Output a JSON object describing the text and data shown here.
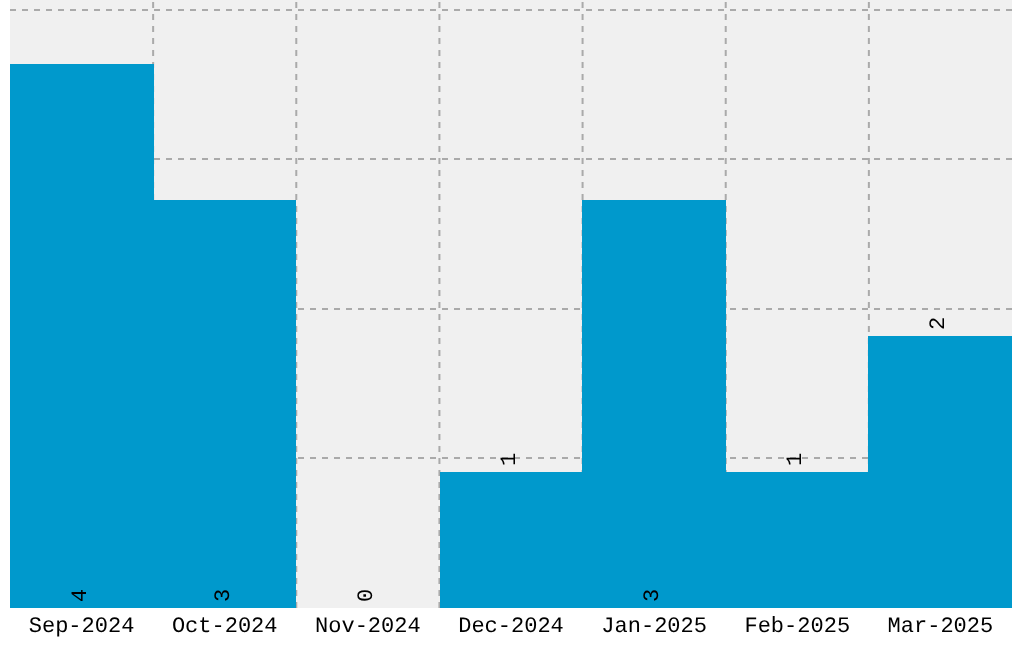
{
  "chart_data": {
    "type": "bar",
    "categories": [
      "Sep-2024",
      "Oct-2024",
      "Nov-2024",
      "Dec-2024",
      "Jan-2025",
      "Feb-2025",
      "Mar-2025"
    ],
    "values": [
      4,
      3,
      0,
      1,
      3,
      1,
      2
    ],
    "color": "#0099cc",
    "ylim": [
      0,
      4.47
    ],
    "yticks": [
      {
        "value": 0,
        "label": null
      },
      {
        "value": 1.1,
        "label": null
      },
      {
        "value": 2.2,
        "label": null
      },
      {
        "value": 3.3,
        "label": null
      },
      {
        "value": 4.4,
        "label": null
      }
    ],
    "tick_labels": "x",
    "grid": true,
    "data_labels": true
  }
}
